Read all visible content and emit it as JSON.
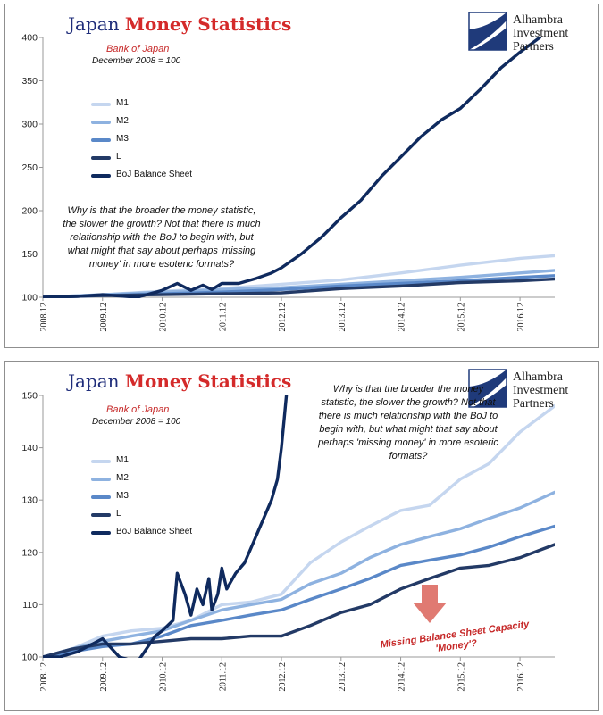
{
  "header": {
    "title_part1": "Japan ",
    "title_part2": "Money Statistics"
  },
  "logo": {
    "line1": "Alhambra",
    "line2": "Investment",
    "line3": "Partners"
  },
  "subtitle": {
    "source": "Bank of Japan",
    "basis": "December 2008 = 100"
  },
  "note_text": "Why is that the broader the money statistic, the slower the growth? Not that there is much relationship with the BoJ to begin with, but what might that say about perhaps 'missing money' in more esoteric formats?",
  "annotation": {
    "line1": "Missing Balance Sheet Capacity",
    "line2": "'Money'?"
  },
  "colors": {
    "M1": "#c5d6ef",
    "M2": "#8eb2e0",
    "M3": "#5a88c8",
    "L": "#233a66",
    "BoJ": "#0f2a5e",
    "arrow": "#e07a72"
  },
  "chart_data": [
    {
      "type": "line",
      "x_tick_labels": [
        "2008.12",
        "2009.12",
        "2010.12",
        "2011.12",
        "2012.12",
        "2013.12",
        "2014.12",
        "2015.12",
        "2016.12"
      ],
      "x_range": [
        2008.917,
        2017.5
      ],
      "ylim": [
        100,
        400
      ],
      "y_ticks": [
        100,
        150,
        200,
        250,
        300,
        350,
        400
      ],
      "legend": "upper-left",
      "series": [
        {
          "name": "M1",
          "points": [
            [
              2008.917,
              100
            ],
            [
              2009.917,
              103
            ],
            [
              2010.917,
              107
            ],
            [
              2011.917,
              110
            ],
            [
              2012.917,
              115
            ],
            [
              2013.917,
              120
            ],
            [
              2014.917,
              128
            ],
            [
              2015.917,
              137
            ],
            [
              2016.917,
              145
            ],
            [
              2017.5,
              148
            ]
          ]
        },
        {
          "name": "M2",
          "points": [
            [
              2008.917,
              100
            ],
            [
              2009.917,
              103
            ],
            [
              2010.917,
              106
            ],
            [
              2011.917,
              109
            ],
            [
              2012.917,
              111
            ],
            [
              2013.917,
              115
            ],
            [
              2014.917,
              119
            ],
            [
              2015.917,
              123
            ],
            [
              2016.917,
              128
            ],
            [
              2017.5,
              131
            ]
          ]
        },
        {
          "name": "M3",
          "points": [
            [
              2008.917,
              100
            ],
            [
              2009.917,
              102
            ],
            [
              2010.917,
              104
            ],
            [
              2011.917,
              106
            ],
            [
              2012.917,
              109
            ],
            [
              2013.917,
              113
            ],
            [
              2014.917,
              116
            ],
            [
              2015.917,
              119
            ],
            [
              2016.917,
              123
            ],
            [
              2017.5,
              125
            ]
          ]
        },
        {
          "name": "L",
          "points": [
            [
              2008.917,
              100
            ],
            [
              2009.917,
              102
            ],
            [
              2010.917,
              103
            ],
            [
              2011.917,
              104
            ],
            [
              2012.917,
              105
            ],
            [
              2013.917,
              110
            ],
            [
              2014.917,
              113
            ],
            [
              2015.917,
              117
            ],
            [
              2016.917,
              119
            ],
            [
              2017.5,
              121
            ]
          ]
        },
        {
          "name": "BoJ Balance Sheet",
          "points": [
            [
              2008.917,
              100
            ],
            [
              2009.5,
              101
            ],
            [
              2009.917,
              103
            ],
            [
              2010.5,
              100
            ],
            [
              2010.917,
              108
            ],
            [
              2011.17,
              116
            ],
            [
              2011.4,
              108
            ],
            [
              2011.6,
              114
            ],
            [
              2011.75,
              109
            ],
            [
              2011.917,
              116
            ],
            [
              2012.2,
              116
            ],
            [
              2012.5,
              122
            ],
            [
              2012.75,
              128
            ],
            [
              2012.917,
              134
            ],
            [
              2013.25,
              150
            ],
            [
              2013.6,
              170
            ],
            [
              2013.917,
              192
            ],
            [
              2014.25,
              212
            ],
            [
              2014.6,
              240
            ],
            [
              2014.917,
              262
            ],
            [
              2015.25,
              285
            ],
            [
              2015.6,
              305
            ],
            [
              2015.917,
              318
            ],
            [
              2016.25,
              340
            ],
            [
              2016.6,
              365
            ],
            [
              2016.917,
              383
            ],
            [
              2017.25,
              400
            ]
          ]
        }
      ]
    },
    {
      "type": "line",
      "x_tick_labels": [
        "2008.12",
        "2009.12",
        "2010.12",
        "2011.12",
        "2012.12",
        "2013.12",
        "2014.12",
        "2015.12",
        "2016.12"
      ],
      "x_range": [
        2008.917,
        2017.5
      ],
      "ylim": [
        100,
        150
      ],
      "y_ticks": [
        100,
        110,
        120,
        130,
        140,
        150
      ],
      "legend": "upper-left",
      "series": [
        {
          "name": "M1",
          "points": [
            [
              2008.917,
              100
            ],
            [
              2009.4,
              101.5
            ],
            [
              2009.917,
              104
            ],
            [
              2010.4,
              105
            ],
            [
              2010.917,
              105.5
            ],
            [
              2011.4,
              107
            ],
            [
              2011.917,
              110
            ],
            [
              2012.4,
              110.5
            ],
            [
              2012.917,
              112
            ],
            [
              2013.4,
              118
            ],
            [
              2013.917,
              122
            ],
            [
              2014.4,
              125
            ],
            [
              2014.917,
              128
            ],
            [
              2015.4,
              129
            ],
            [
              2015.917,
              134
            ],
            [
              2016.4,
              137
            ],
            [
              2016.917,
              143
            ],
            [
              2017.5,
              148
            ]
          ]
        },
        {
          "name": "M2",
          "points": [
            [
              2008.917,
              100
            ],
            [
              2009.4,
              101.5
            ],
            [
              2009.917,
              103
            ],
            [
              2010.4,
              104
            ],
            [
              2010.917,
              105
            ],
            [
              2011.4,
              107
            ],
            [
              2011.917,
              109
            ],
            [
              2012.4,
              110
            ],
            [
              2012.917,
              111
            ],
            [
              2013.4,
              114
            ],
            [
              2013.917,
              116
            ],
            [
              2014.4,
              119
            ],
            [
              2014.917,
              121.5
            ],
            [
              2015.4,
              123
            ],
            [
              2015.917,
              124.5
            ],
            [
              2016.4,
              126.5
            ],
            [
              2016.917,
              128.5
            ],
            [
              2017.5,
              131.5
            ]
          ]
        },
        {
          "name": "M3",
          "points": [
            [
              2008.917,
              100
            ],
            [
              2009.4,
              101
            ],
            [
              2009.917,
              102
            ],
            [
              2010.4,
              102.5
            ],
            [
              2010.917,
              104
            ],
            [
              2011.4,
              106
            ],
            [
              2011.917,
              107
            ],
            [
              2012.4,
              108
            ],
            [
              2012.917,
              109
            ],
            [
              2013.4,
              111
            ],
            [
              2013.917,
              113
            ],
            [
              2014.4,
              115
            ],
            [
              2014.917,
              117.5
            ],
            [
              2015.4,
              118.5
            ],
            [
              2015.917,
              119.5
            ],
            [
              2016.4,
              121
            ],
            [
              2016.917,
              123
            ],
            [
              2017.5,
              125
            ]
          ]
        },
        {
          "name": "L",
          "points": [
            [
              2008.917,
              100
            ],
            [
              2009.4,
              101.5
            ],
            [
              2009.917,
              102.5
            ],
            [
              2010.4,
              102.5
            ],
            [
              2010.917,
              103
            ],
            [
              2011.4,
              103.5
            ],
            [
              2011.917,
              103.5
            ],
            [
              2012.4,
              104
            ],
            [
              2012.917,
              104
            ],
            [
              2013.4,
              106
            ],
            [
              2013.917,
              108.5
            ],
            [
              2014.4,
              110
            ],
            [
              2014.917,
              113
            ],
            [
              2015.4,
              115
            ],
            [
              2015.917,
              117
            ],
            [
              2016.4,
              117.5
            ],
            [
              2016.917,
              119
            ],
            [
              2017.5,
              121.5
            ]
          ]
        },
        {
          "name": "BoJ Balance Sheet",
          "points": [
            [
              2008.917,
              100
            ],
            [
              2009.2,
              100
            ],
            [
              2009.5,
              101
            ],
            [
              2009.917,
              103.5
            ],
            [
              2010.2,
              100
            ],
            [
              2010.5,
              99
            ],
            [
              2010.8,
              104
            ],
            [
              2010.917,
              105
            ],
            [
              2011.1,
              107
            ],
            [
              2011.17,
              116
            ],
            [
              2011.3,
              112
            ],
            [
              2011.4,
              108
            ],
            [
              2011.5,
              113
            ],
            [
              2011.6,
              110
            ],
            [
              2011.7,
              115
            ],
            [
              2011.75,
              109
            ],
            [
              2011.85,
              112
            ],
            [
              2011.917,
              117
            ],
            [
              2012.0,
              113
            ],
            [
              2012.15,
              116
            ],
            [
              2012.3,
              118
            ],
            [
              2012.45,
              122
            ],
            [
              2012.6,
              126
            ],
            [
              2012.75,
              130
            ],
            [
              2012.85,
              134
            ],
            [
              2012.917,
              140
            ],
            [
              2013.0,
              150
            ]
          ]
        }
      ]
    }
  ]
}
